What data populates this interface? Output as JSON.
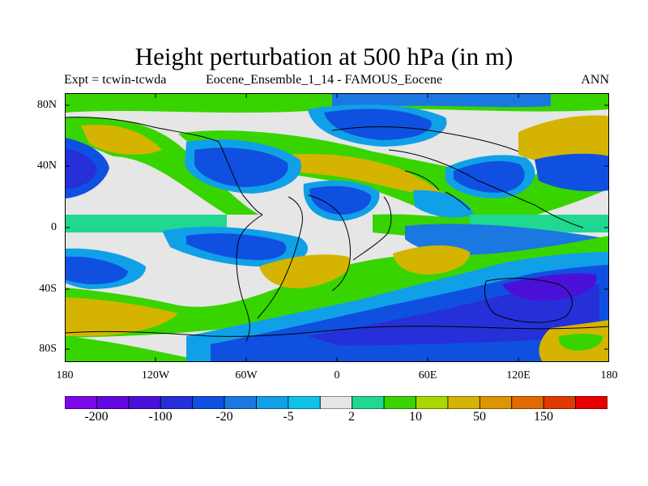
{
  "figure": {
    "title": "Height perturbation at 500 hPa (in m)",
    "subtitle_left": "Expt = tcwin-tcwda",
    "subtitle_center": "Eocene_Ensemble_1_14 - FAMOUS_Eocene",
    "subtitle_right": "ANN"
  },
  "map": {
    "projection": "cylindrical equidistant",
    "lat_range": [
      -90,
      90
    ],
    "lon_range": [
      -180,
      180
    ],
    "lat_ticks": [
      "80N",
      "40N",
      "0",
      "40S",
      "80S"
    ],
    "lon_ticks": [
      "180",
      "120W",
      "60W",
      "0",
      "60E",
      "120E",
      "180"
    ],
    "coastlines": true,
    "field": "geopotential height perturbation at 500 hPa"
  },
  "colorbar": {
    "colors": [
      "#7a08e8",
      "#6208e0",
      "#4a10d8",
      "#2530d8",
      "#1050e0",
      "#1a78e0",
      "#10a0e8",
      "#10c2e8",
      "#e6e6e6",
      "#20d890",
      "#38d400",
      "#a8d800",
      "#d4b400",
      "#dc9400",
      "#e06a00",
      "#e03a00",
      "#e80000"
    ],
    "labels": [
      "-200",
      "-100",
      "-20",
      "-5",
      "2",
      "10",
      "50",
      "150"
    ]
  }
}
